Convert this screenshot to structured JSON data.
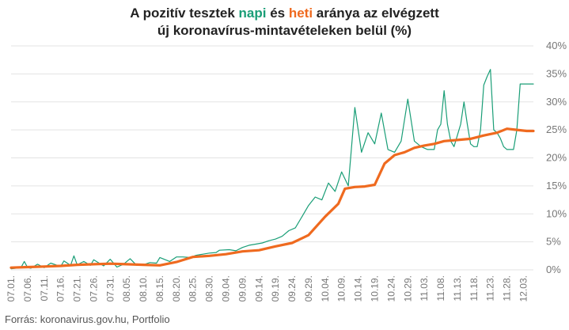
{
  "title": {
    "line1_before": "A pozitív tesztek ",
    "line1_napi": "napi",
    "line1_mid": " és ",
    "line1_heti": "heti",
    "line1_after": " aránya az elvégzett",
    "line2": "új koronavírus-mintavételeken belül (%)"
  },
  "source": "Forrás: koronavirus.gov.hu, Portfolio",
  "colors": {
    "napi": "#1a9e77",
    "heti": "#ef6a1f",
    "grid": "#e3e3e3",
    "tick": "#777777"
  },
  "chart_data": {
    "type": "line",
    "ylim": [
      0,
      40
    ],
    "yticks": [
      "0%",
      "5%",
      "10%",
      "15%",
      "20%",
      "25%",
      "30%",
      "35%",
      "40%"
    ],
    "xticks": [
      "07.01.",
      "07.06.",
      "07.11.",
      "07.16.",
      "07.21.",
      "07.26.",
      "07.31.",
      "08.05.",
      "08.10.",
      "08.15.",
      "08.20.",
      "08.25.",
      "08.30.",
      "09.04.",
      "09.09.",
      "09.14.",
      "09.19.",
      "09.24.",
      "09.29.",
      "10.04.",
      "10.09.",
      "10.14.",
      "10.19.",
      "10.24.",
      "10.29.",
      "11.03.",
      "11.08.",
      "11.13.",
      "11.18.",
      "11.23.",
      "11.28.",
      "12.03."
    ],
    "series": [
      {
        "name": "napi",
        "key": "napi",
        "x": [
          0,
          3,
          4,
          5,
          6,
          8,
          10,
          12,
          15,
          16,
          18,
          19,
          20,
          22,
          24,
          25,
          28,
          30,
          32,
          34,
          36,
          38,
          40,
          42,
          44,
          45,
          48,
          50,
          52,
          54,
          56,
          58,
          60,
          62,
          63,
          66,
          68,
          70,
          72,
          74,
          76,
          78,
          80,
          82,
          84,
          86,
          88,
          90,
          92,
          94,
          96,
          98,
          100,
          102,
          104,
          106,
          108,
          110,
          112,
          114,
          116,
          118,
          120,
          122,
          124,
          126,
          127,
          128,
          129,
          130,
          131,
          132,
          133,
          134,
          135,
          136,
          137,
          138,
          139,
          140,
          141,
          142,
          143,
          144,
          145,
          146,
          147,
          148,
          149,
          150,
          151,
          152,
          153,
          154,
          155,
          156,
          157,
          158
        ],
        "y": [
          0.2,
          0.4,
          1.5,
          0.4,
          0.3,
          1.0,
          0.4,
          1.2,
          0.6,
          1.6,
          0.8,
          2.5,
          0.9,
          1.5,
          0.8,
          1.8,
          0.7,
          1.9,
          0.5,
          1.0,
          2.0,
          0.8,
          0.9,
          1.3,
          1.2,
          2.2,
          1.5,
          2.3,
          2.3,
          2.2,
          2.6,
          2.8,
          3.0,
          3.1,
          3.5,
          3.6,
          3.4,
          4.0,
          4.4,
          4.6,
          4.8,
          5.2,
          5.5,
          6.0,
          7.0,
          7.5,
          9.5,
          11.5,
          13.0,
          12.5,
          15.5,
          14.0,
          17.5,
          15.0,
          29.0,
          21.0,
          24.5,
          22.5,
          28.0,
          21.5,
          21.0,
          23.0,
          30.5,
          23.0,
          22.0,
          21.5,
          21.5,
          21.5,
          25.0,
          26.0,
          32.0,
          26.0,
          23.0,
          22.0,
          24.0,
          26.0,
          30.0,
          26.0,
          22.5,
          22.0,
          22.0,
          25.0,
          33.0,
          34.5,
          35.8,
          25.0,
          24.5,
          23.5,
          22.0,
          21.5,
          21.5,
          21.5,
          25.0,
          33.2,
          33.2,
          33.2,
          33.2,
          33.2
        ],
        "style": "thin"
      },
      {
        "name": "heti",
        "key": "heti",
        "x": [
          0,
          5,
          10,
          15,
          20,
          25,
          30,
          35,
          40,
          45,
          50,
          55,
          60,
          65,
          70,
          75,
          80,
          85,
          90,
          95,
          99,
          101,
          104,
          107,
          110,
          113,
          116,
          119,
          122,
          125,
          128,
          131,
          135,
          139,
          143,
          147,
          150,
          153,
          156,
          158
        ],
        "y": [
          0.4,
          0.5,
          0.6,
          0.7,
          0.9,
          1.0,
          1.1,
          1.0,
          0.9,
          0.8,
          1.4,
          2.3,
          2.5,
          2.8,
          3.3,
          3.5,
          4.2,
          4.8,
          6.2,
          9.5,
          11.8,
          14.5,
          14.8,
          14.9,
          15.2,
          19.0,
          20.5,
          21.0,
          21.8,
          22.2,
          22.5,
          23.0,
          23.2,
          23.4,
          24.0,
          24.5,
          25.2,
          25.0,
          24.8,
          24.8
        ],
        "style": "thick"
      }
    ]
  }
}
